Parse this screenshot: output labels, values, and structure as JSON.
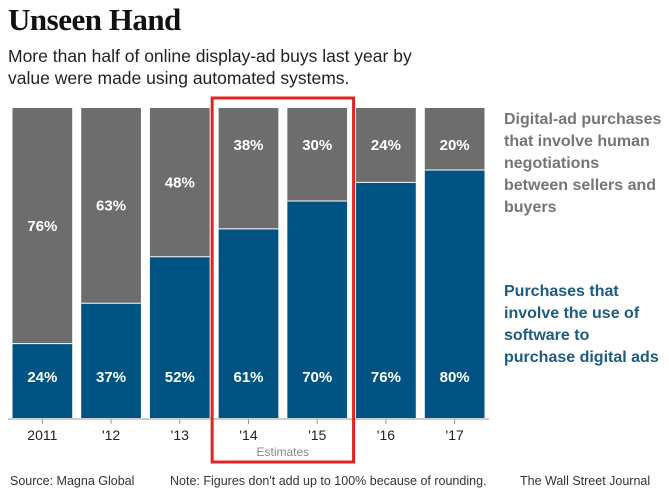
{
  "header": {
    "title": "Unseen Hand",
    "subtitle": "More than half of online display-ad buys last year by value were made using automated systems."
  },
  "legend": {
    "human": "Digital-ad purchases that involve human negotiations between sellers and buyers",
    "software": "Purchases that involve the use of software to purchase digital ads"
  },
  "footer": {
    "source": "Source: Magna Global",
    "note": "Note: Figures don't add up to 100% because of rounding.",
    "publisher": "The Wall Street Journal"
  },
  "colors": {
    "software": "#005382",
    "human": "#6d6d6d",
    "highlight": "#e52222",
    "legend_human_text": "#757575",
    "legend_software_text": "#1c5b84"
  },
  "chart_data": {
    "type": "bar",
    "stacked": true,
    "title": "Unseen Hand",
    "categories": [
      "2011",
      "'12",
      "'13",
      "'14",
      "'15",
      "'16",
      "'17"
    ],
    "series": [
      {
        "name": "Purchases that involve the use of software to purchase digital ads",
        "values": [
          24,
          37,
          52,
          61,
          70,
          76,
          80
        ],
        "labels": [
          "24%",
          "37%",
          "52%",
          "61%",
          "70%",
          "76%",
          "80%"
        ]
      },
      {
        "name": "Digital-ad purchases that involve human negotiations between sellers and buyers",
        "values": [
          76,
          63,
          48,
          38,
          30,
          24,
          20
        ],
        "labels": [
          "76%",
          "63%",
          "48%",
          "38%",
          "30%",
          "24%",
          "20%"
        ]
      }
    ],
    "ylim": [
      0,
      100
    ],
    "highlight": {
      "label": "Estimates",
      "categories": [
        "'14",
        "'15"
      ]
    },
    "xlabel": "",
    "ylabel": ""
  }
}
